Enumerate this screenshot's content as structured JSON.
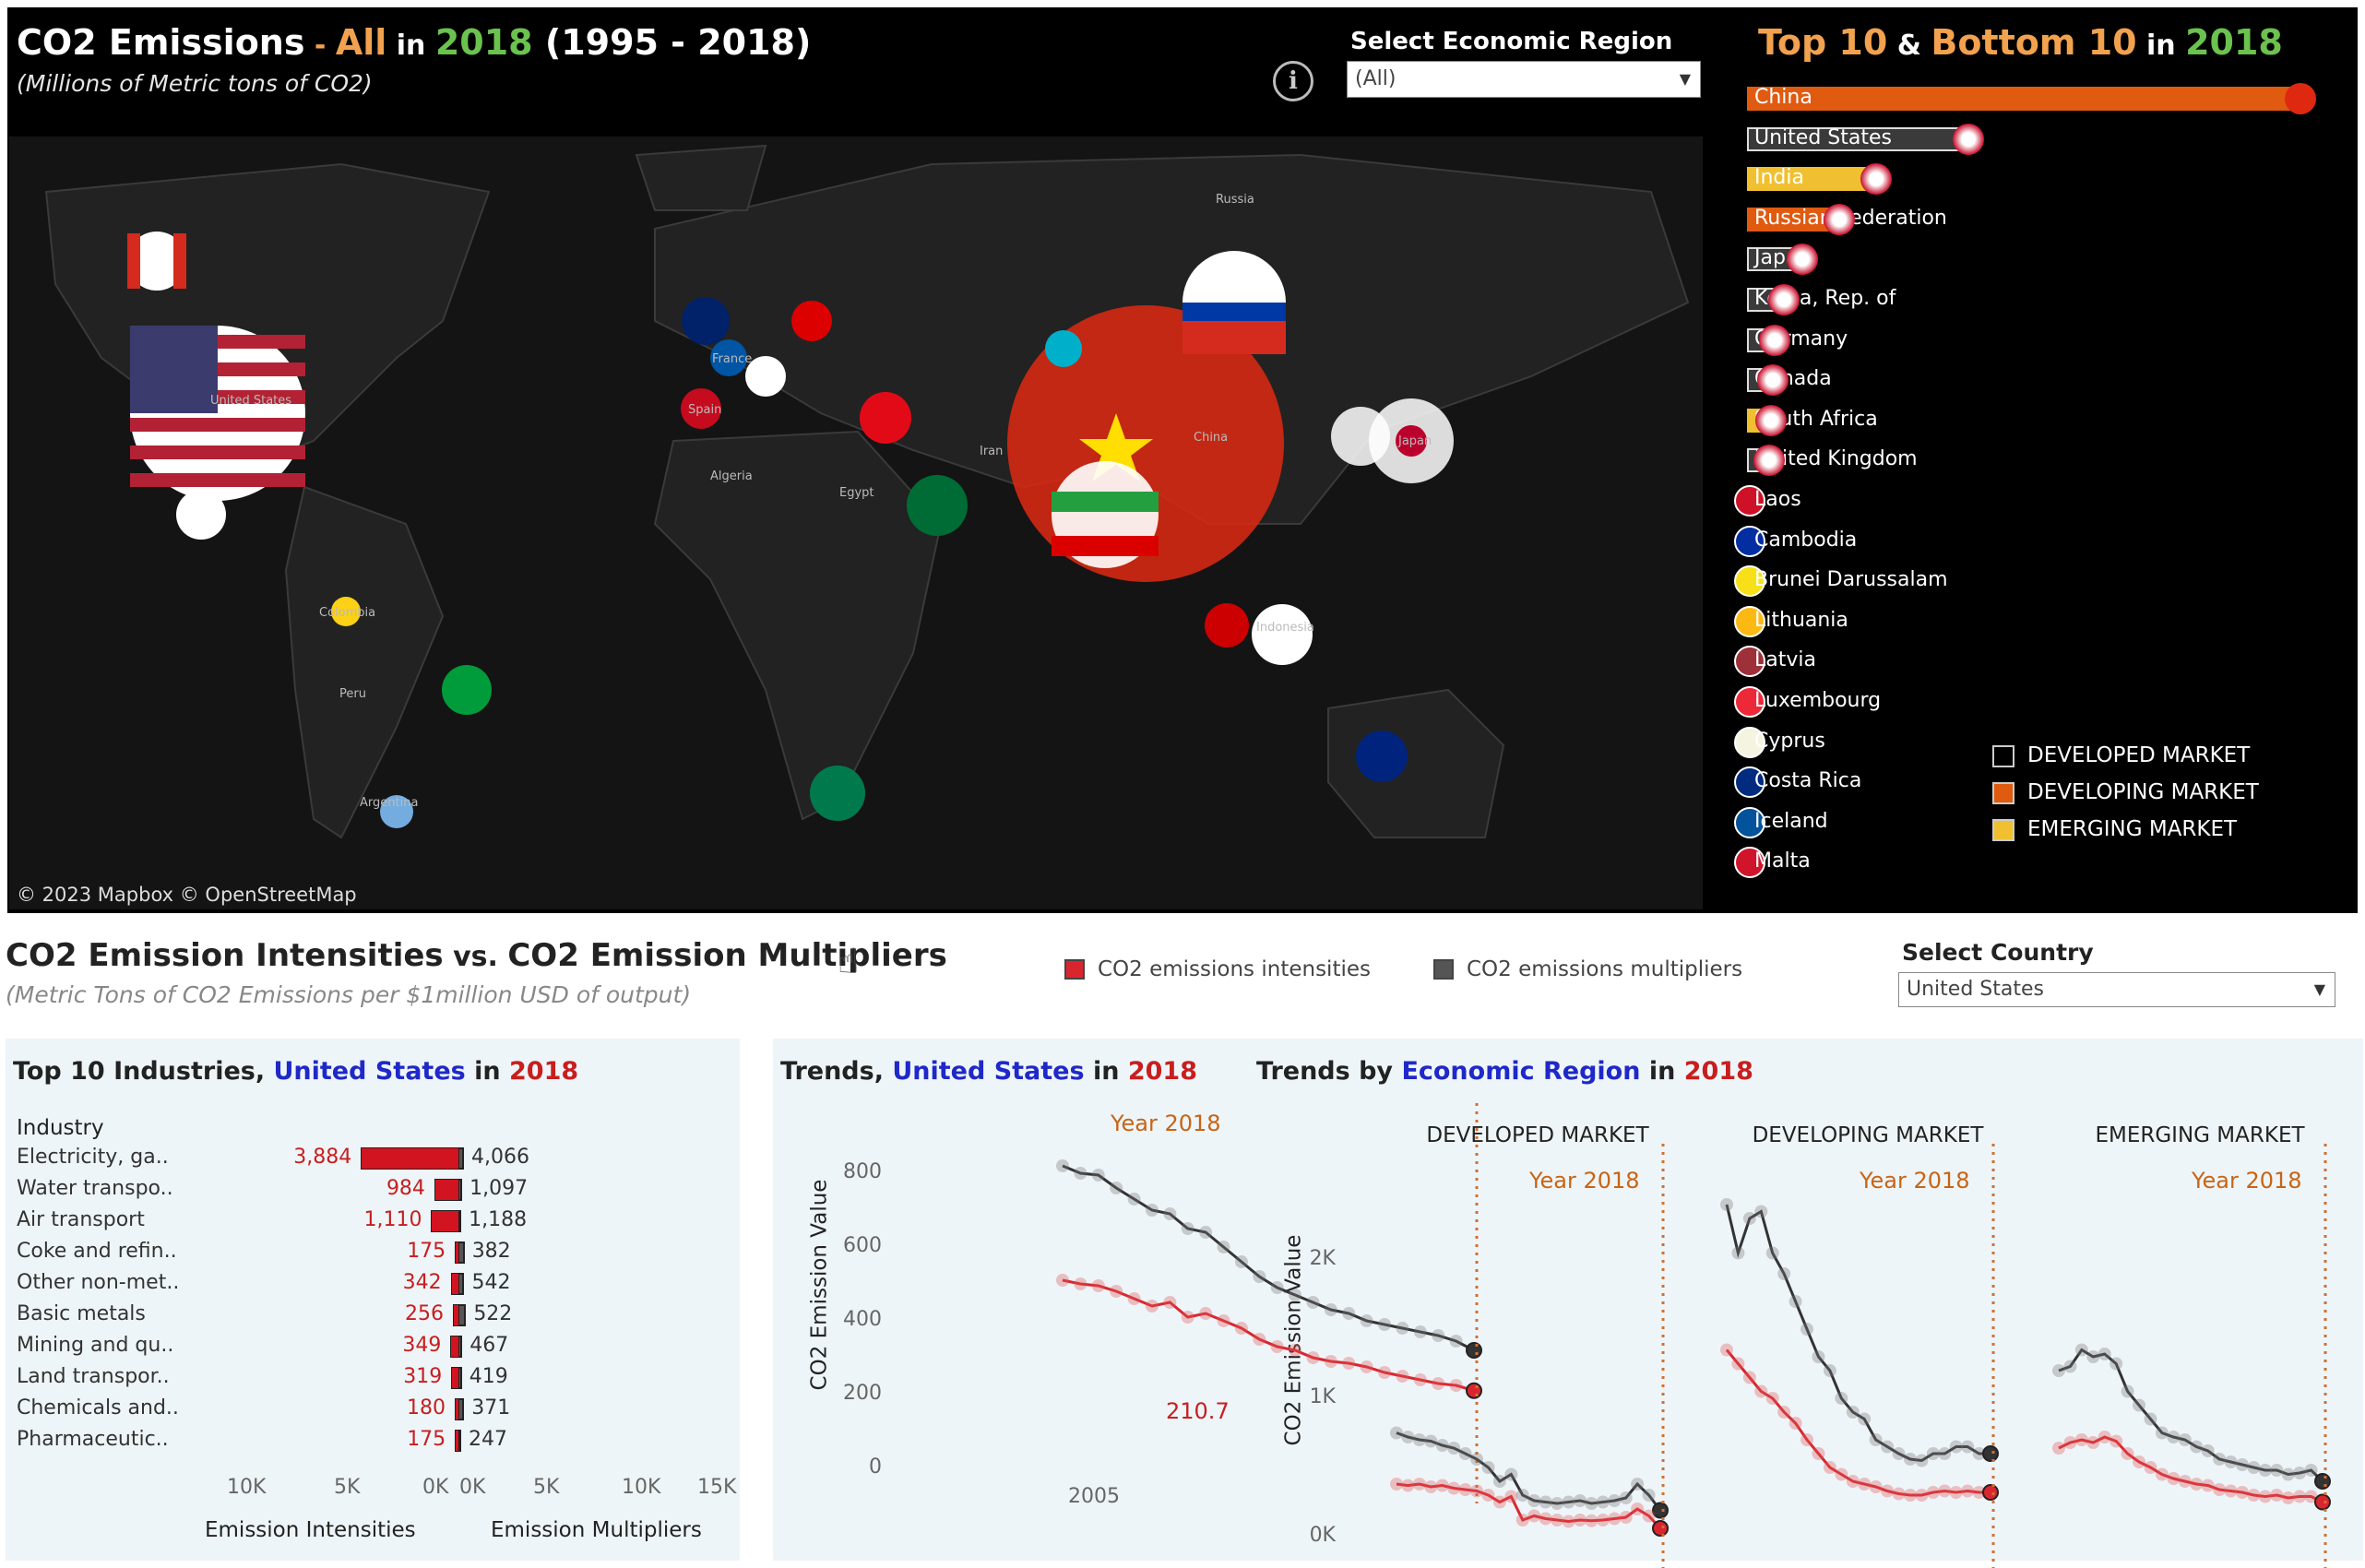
{
  "header": {
    "title_prefix": "CO2 Emissions",
    "title_dash": " - ",
    "title_region": "All",
    "title_in": " in ",
    "title_year": "2018",
    "title_range": "(1995 - 2018)",
    "subtitle": "(Millions of Metric tons of CO2)",
    "info_icon": "i"
  },
  "region_filter": {
    "label": "Select Economic Region",
    "value": "(All)"
  },
  "map": {
    "credit": "© 2023 Mapbox  © OpenStreetMap",
    "place_labels": [
      "Russia",
      "China",
      "Iran",
      "Algeria",
      "Egypt",
      "United States",
      "Colombia",
      "Peru",
      "Argentina",
      "Spain",
      "France",
      "Japan",
      "Indonesia"
    ]
  },
  "ranking": {
    "title_top": "Top 10",
    "title_amp": " & ",
    "title_bottom": "Bottom 10",
    "title_in": " in ",
    "title_year": "2018",
    "top": [
      {
        "name": "China",
        "market": "developing"
      },
      {
        "name": "United States",
        "market": "developed"
      },
      {
        "name": "India",
        "market": "emerging"
      },
      {
        "name": "Russian Federation",
        "market": "developing"
      },
      {
        "name": "Japan",
        "market": "developed"
      },
      {
        "name": "Korea, Rep. of",
        "market": "developed"
      },
      {
        "name": "Germany",
        "market": "developed"
      },
      {
        "name": "Canada",
        "market": "developed"
      },
      {
        "name": "South Africa",
        "market": "emerging"
      },
      {
        "name": "United Kingdom",
        "market": "developed"
      }
    ],
    "bottom": [
      "Laos",
      "Cambodia",
      "Brunei Darussalam",
      "Lithuania",
      "Latvia",
      "Luxembourg",
      "Cyprus",
      "Costa Rica",
      "Iceland",
      "Malta"
    ],
    "legend": [
      "DEVELOPED MARKET",
      "DEVELOPING MARKET",
      "EMERGING MARKET"
    ],
    "colors": {
      "developed": "#3a3a3a",
      "developing": "#e05a10",
      "emerging": "#f0c030"
    }
  },
  "intensities": {
    "title_a": "CO2 Emission Intensities",
    "title_vs": " vs. ",
    "title_b": "CO2 Emission Multipliers",
    "subtitle": "(Metric Tons of CO2 Emissions per $1million USD of output)",
    "legend_intensity": "CO2 emissions intensities",
    "legend_multiplier": "CO2 emissions multipliers",
    "country_filter_label": "Select  Country",
    "country_value": "United States"
  },
  "industries": {
    "title_pre": "Top 10 Industries, ",
    "country": "United States",
    "title_in": " in ",
    "year": "2018",
    "header": "Industry",
    "rows": [
      {
        "name": "Electricity, ga..",
        "intensity": "3,884",
        "multiplier": "4,066",
        "iv": 3884,
        "mv": 4066
      },
      {
        "name": "Water transpo..",
        "intensity": "984",
        "multiplier": "1,097",
        "iv": 984,
        "mv": 1097
      },
      {
        "name": "Air transport",
        "intensity": "1,110",
        "multiplier": "1,188",
        "iv": 1110,
        "mv": 1188
      },
      {
        "name": "Coke and refin..",
        "intensity": "175",
        "multiplier": "382",
        "iv": 175,
        "mv": 382
      },
      {
        "name": "Other non-met..",
        "intensity": "342",
        "multiplier": "542",
        "iv": 342,
        "mv": 542
      },
      {
        "name": "Basic metals",
        "intensity": "256",
        "multiplier": "522",
        "iv": 256,
        "mv": 522
      },
      {
        "name": "Mining and qu..",
        "intensity": "349",
        "multiplier": "467",
        "iv": 349,
        "mv": 467
      },
      {
        "name": "Land transpor..",
        "intensity": "319",
        "multiplier": "419",
        "iv": 319,
        "mv": 419
      },
      {
        "name": "Chemicals and..",
        "intensity": "180",
        "multiplier": "371",
        "iv": 180,
        "mv": 371
      },
      {
        "name": "Pharmaceutic..",
        "intensity": "175",
        "multiplier": "247",
        "iv": 175,
        "mv": 247
      }
    ],
    "left_ticks": [
      "10K",
      "5K",
      "0K"
    ],
    "right_ticks": [
      "0K",
      "5K",
      "10K",
      "15K"
    ],
    "left_axis_title": "Emission Intensities",
    "right_axis_title": "Emission Multipliers"
  },
  "trends": {
    "title_pre": "Trends, ",
    "country": "United States",
    "title_in": " in ",
    "year": "2018",
    "year_marker": "Year 2018",
    "end_label": "210.7",
    "ylabel": "CO2 Emission Value",
    "y_ticks": [
      "800",
      "600",
      "400",
      "200",
      "0"
    ],
    "x_tick": "2005"
  },
  "region_trends": {
    "title_pre": "Trends by ",
    "emph": "Economic Region",
    "title_in": " in ",
    "year": "2018",
    "ylabel": "CO2 Emission Value",
    "y_ticks": [
      "2K",
      "1K",
      "0K"
    ],
    "regions": [
      "DEVELOPED MARKET",
      "DEVELOPING MARKET",
      "EMERGING MARKET"
    ],
    "year_marker": "Year 2018"
  },
  "chart_data": [
    {
      "type": "line",
      "title": "Trends, United States in 2018",
      "ylabel": "CO2 Emission Value",
      "x": [
        1995,
        1996,
        1997,
        1998,
        1999,
        2000,
        2001,
        2002,
        2003,
        2004,
        2005,
        2006,
        2007,
        2008,
        2009,
        2010,
        2011,
        2012,
        2013,
        2014,
        2015,
        2016,
        2017,
        2018
      ],
      "series": [
        {
          "name": "CO2 emissions multipliers",
          "values": [
            820,
            800,
            795,
            760,
            730,
            700,
            690,
            650,
            640,
            600,
            560,
            520,
            490,
            470,
            450,
            430,
            420,
            400,
            390,
            380,
            370,
            360,
            345,
            320
          ]
        },
        {
          "name": "CO2 emissions intensities",
          "values": [
            510,
            500,
            495,
            480,
            460,
            440,
            450,
            410,
            420,
            400,
            380,
            350,
            330,
            320,
            300,
            290,
            285,
            275,
            260,
            250,
            240,
            230,
            225,
            210.7
          ]
        }
      ],
      "ylim": [
        0,
        900
      ]
    },
    {
      "type": "line",
      "title": "Trends by Economic Region in 2018 - DEVELOPED MARKET",
      "x": [
        1995,
        1996,
        1997,
        1998,
        1999,
        2000,
        2001,
        2002,
        2003,
        2004,
        2005,
        2006,
        2007,
        2008,
        2009,
        2010,
        2011,
        2012,
        2013,
        2014,
        2015,
        2016,
        2017,
        2018
      ],
      "series": [
        {
          "name": "CO2 emissions multipliers",
          "values": [
            750,
            720,
            700,
            690,
            660,
            640,
            600,
            560,
            500,
            400,
            450,
            300,
            260,
            250,
            240,
            250,
            260,
            240,
            250,
            260,
            280,
            380,
            300,
            190
          ]
        },
        {
          "name": "CO2 emissions intensities",
          "values": [
            380,
            370,
            380,
            360,
            370,
            350,
            340,
            330,
            300,
            250,
            290,
            120,
            150,
            130,
            120,
            110,
            120,
            115,
            120,
            130,
            140,
            200,
            150,
            60
          ]
        }
      ],
      "ylim": [
        0,
        2600
      ]
    },
    {
      "type": "line",
      "title": "Trends by Economic Region in 2018 - DEVELOPING MARKET",
      "x": [
        1995,
        1996,
        1997,
        1998,
        1999,
        2000,
        2001,
        2002,
        2003,
        2004,
        2005,
        2006,
        2007,
        2008,
        2009,
        2010,
        2011,
        2012,
        2013,
        2014,
        2015,
        2016,
        2017,
        2018
      ],
      "series": [
        {
          "name": "CO2 emissions multipliers",
          "values": [
            2400,
            2050,
            2300,
            2350,
            2050,
            1900,
            1700,
            1500,
            1300,
            1200,
            1000,
            900,
            850,
            700,
            650,
            600,
            560,
            550,
            600,
            600,
            650,
            650,
            600,
            600
          ]
        },
        {
          "name": "CO2 emissions intensities",
          "values": [
            1350,
            1250,
            1150,
            1050,
            1000,
            900,
            820,
            700,
            600,
            500,
            450,
            400,
            380,
            360,
            330,
            310,
            300,
            300,
            320,
            330,
            320,
            330,
            320,
            320
          ]
        }
      ],
      "ylim": [
        0,
        2600
      ]
    },
    {
      "type": "line",
      "title": "Trends by Economic Region in 2018 - EMERGING MARKET",
      "x": [
        1995,
        1996,
        1997,
        1998,
        1999,
        2000,
        2001,
        2002,
        2003,
        2004,
        2005,
        2006,
        2007,
        2008,
        2009,
        2010,
        2011,
        2012,
        2013,
        2014,
        2015,
        2016,
        2017,
        2018
      ],
      "series": [
        {
          "name": "CO2 emissions multipliers",
          "values": [
            1200,
            1230,
            1350,
            1300,
            1320,
            1250,
            1050,
            950,
            850,
            750,
            720,
            700,
            650,
            620,
            560,
            540,
            520,
            500,
            480,
            480,
            450,
            460,
            480,
            400
          ]
        },
        {
          "name": "CO2 emissions intensities",
          "values": [
            640,
            680,
            700,
            680,
            720,
            690,
            600,
            540,
            500,
            450,
            420,
            400,
            380,
            370,
            340,
            330,
            320,
            300,
            290,
            300,
            280,
            290,
            290,
            250
          ]
        }
      ],
      "ylim": [
        0,
        2600
      ]
    }
  ]
}
